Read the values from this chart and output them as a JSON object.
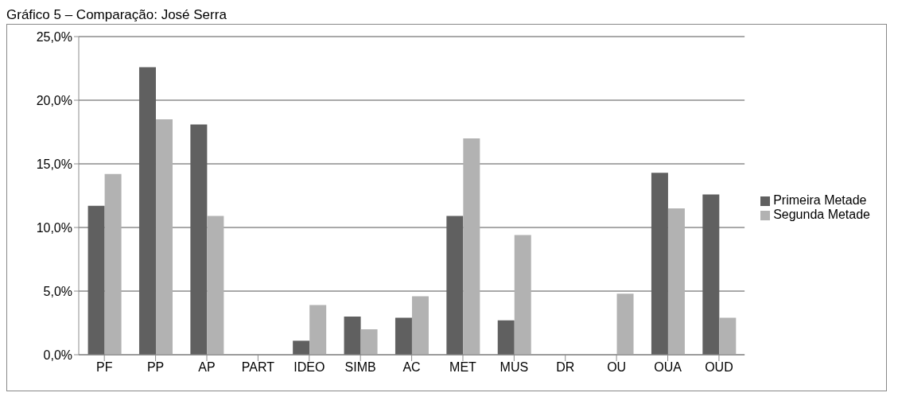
{
  "chart_data": {
    "type": "bar",
    "title": "Gráfico 5 – Comparação: José Serra",
    "categories": [
      "PF",
      "PP",
      "AP",
      "PART",
      "IDEO",
      "SIMB",
      "AC",
      "MET",
      "MUS",
      "DR",
      "OU",
      "OUA",
      "OUD"
    ],
    "series": [
      {
        "name": "Primeira Metade",
        "color": "#606060",
        "values": [
          11.7,
          22.6,
          18.1,
          0,
          1.1,
          3.0,
          2.9,
          10.9,
          2.7,
          0,
          0,
          14.3,
          12.6
        ]
      },
      {
        "name": "Segunda Metade",
        "color": "#b2b2b2",
        "values": [
          14.2,
          18.5,
          10.9,
          0,
          3.9,
          2.0,
          4.6,
          17.0,
          9.4,
          0,
          4.8,
          11.5,
          2.9
        ]
      }
    ],
    "ylim": [
      0,
      25
    ],
    "yticks": [
      {
        "value": 0,
        "label": "0,0%"
      },
      {
        "value": 5,
        "label": "5,0%"
      },
      {
        "value": 10,
        "label": "10,0%"
      },
      {
        "value": 15,
        "label": "15,0%"
      },
      {
        "value": 20,
        "label": "20,0%"
      },
      {
        "value": 25,
        "label": "25,0%"
      }
    ],
    "grid": "y",
    "legend": "right"
  }
}
